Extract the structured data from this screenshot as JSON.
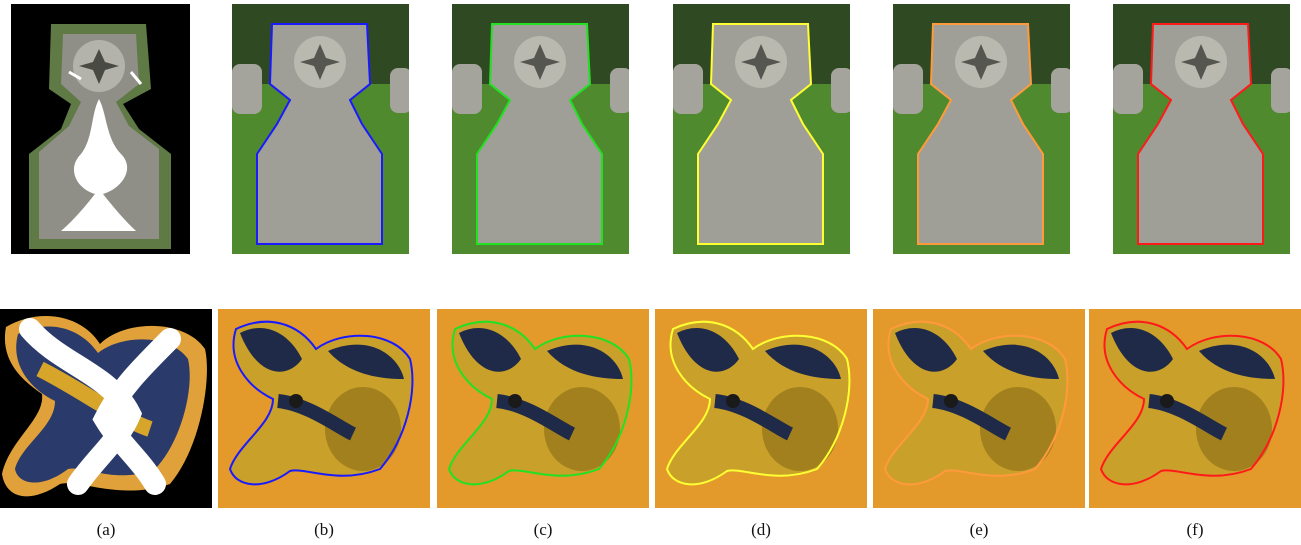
{
  "figure": {
    "captions": [
      "(a)",
      "(b)",
      "(c)",
      "(d)",
      "(e)",
      "(f)"
    ],
    "rows": [
      {
        "subject": "celtic-cross-gravestone",
        "background": "grass"
      },
      {
        "subject": "ceramic-elephant",
        "background": "orange"
      }
    ],
    "contour_colors": {
      "b": "#1a1aff",
      "c": "#22e022",
      "d": "#ffff33",
      "e": "#ff9a3c",
      "f": "#ff1a1a"
    }
  }
}
